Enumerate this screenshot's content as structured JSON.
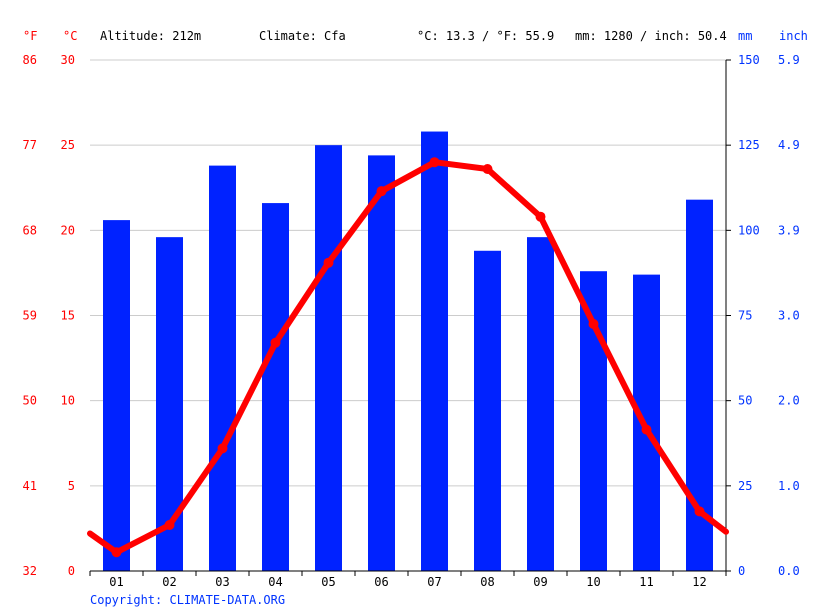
{
  "header": {
    "unit_f": "°F",
    "unit_c": "°C",
    "altitude": "Altitude: 212m",
    "climate": "Climate: Cfa",
    "temp_avg": "°C: 13.3 / °F: 55.9",
    "precip_avg": "mm: 1280 / inch: 50.4",
    "unit_mm": "mm",
    "unit_inch": "inch"
  },
  "copyright": "Copyright: CLIMATE-DATA.ORG",
  "colors": {
    "temperature": "#ff0000",
    "precipitation": "#0022ff",
    "grid": "#cccccc",
    "axis": "#000000"
  },
  "chart_data": {
    "type": "bar",
    "categories": [
      "01",
      "02",
      "03",
      "04",
      "05",
      "06",
      "07",
      "08",
      "09",
      "10",
      "11",
      "12"
    ],
    "series": [
      {
        "type": "bar",
        "unit": "mm",
        "values": [
          103,
          98,
          119,
          108,
          125,
          122,
          129,
          94,
          98,
          88,
          87,
          109
        ]
      },
      {
        "type": "line",
        "unit": "°C",
        "values": [
          1.1,
          2.7,
          7.2,
          13.4,
          18.1,
          22.3,
          24.0,
          23.6,
          20.8,
          14.5,
          8.3,
          3.5
        ]
      }
    ],
    "line_edge_values": {
      "start": 2.2,
      "end": 2.3
    },
    "axes": {
      "celsius": {
        "range": [
          0,
          30
        ],
        "ticks": [
          "0",
          "5",
          "10",
          "15",
          "20",
          "25",
          "30"
        ]
      },
      "fahrenheit": {
        "ticks": [
          "32",
          "41",
          "50",
          "59",
          "68",
          "77",
          "86"
        ]
      },
      "mm": {
        "range": [
          0,
          150
        ],
        "ticks": [
          "0",
          "25",
          "50",
          "75",
          "100",
          "125",
          "150"
        ]
      },
      "inch": {
        "ticks": [
          "0.0",
          "1.0",
          "2.0",
          "3.0",
          "3.9",
          "4.9",
          "5.9"
        ]
      }
    },
    "grid": true
  }
}
